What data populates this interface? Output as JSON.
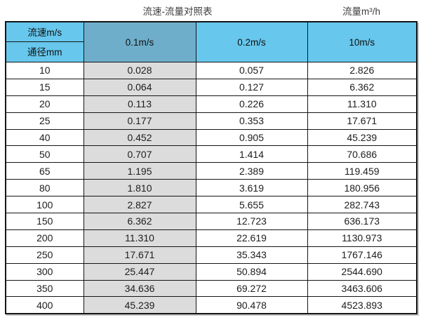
{
  "styles": {
    "header_blue": "#67c7ed",
    "header_dark_blue": "#6faecb",
    "highlight_gray": "#dcdcdc",
    "border_color": "#151515"
  },
  "chart_data": {
    "type": "table",
    "title": "流速-流量对照表",
    "unit_label": "流量m³/h",
    "corner_header": {
      "top": "流速m/s",
      "bottom": "通径mm"
    },
    "velocity_columns": [
      "0.1m/s",
      "0.2m/s",
      "10m/s"
    ],
    "rows": [
      {
        "diameter": "10",
        "values": [
          "0.028",
          "0.057",
          "2.826"
        ]
      },
      {
        "diameter": "15",
        "values": [
          "0.064",
          "0.127",
          "6.362"
        ]
      },
      {
        "diameter": "20",
        "values": [
          "0.113",
          "0.226",
          "11.310"
        ]
      },
      {
        "diameter": "25",
        "values": [
          "0.177",
          "0.353",
          "17.671"
        ]
      },
      {
        "diameter": "40",
        "values": [
          "0.452",
          "0.905",
          "45.239"
        ]
      },
      {
        "diameter": "50",
        "values": [
          "0.707",
          "1.414",
          "70.686"
        ]
      },
      {
        "diameter": "65",
        "values": [
          "1.195",
          "2.389",
          "119.459"
        ]
      },
      {
        "diameter": "80",
        "values": [
          "1.810",
          "3.619",
          "180.956"
        ]
      },
      {
        "diameter": "100",
        "values": [
          "2.827",
          "5.655",
          "282.743"
        ]
      },
      {
        "diameter": "150",
        "values": [
          "6.362",
          "12.723",
          "636.173"
        ]
      },
      {
        "diameter": "200",
        "values": [
          "11.310",
          "22.619",
          "1130.973"
        ]
      },
      {
        "diameter": "250",
        "values": [
          "17.671",
          "35.343",
          "1767.146"
        ]
      },
      {
        "diameter": "300",
        "values": [
          "25.447",
          "50.894",
          "2544.690"
        ]
      },
      {
        "diameter": "350",
        "values": [
          "34.636",
          "69.272",
          "3463.606"
        ]
      },
      {
        "diameter": "400",
        "values": [
          "45.239",
          "90.478",
          "4523.893"
        ]
      }
    ]
  }
}
